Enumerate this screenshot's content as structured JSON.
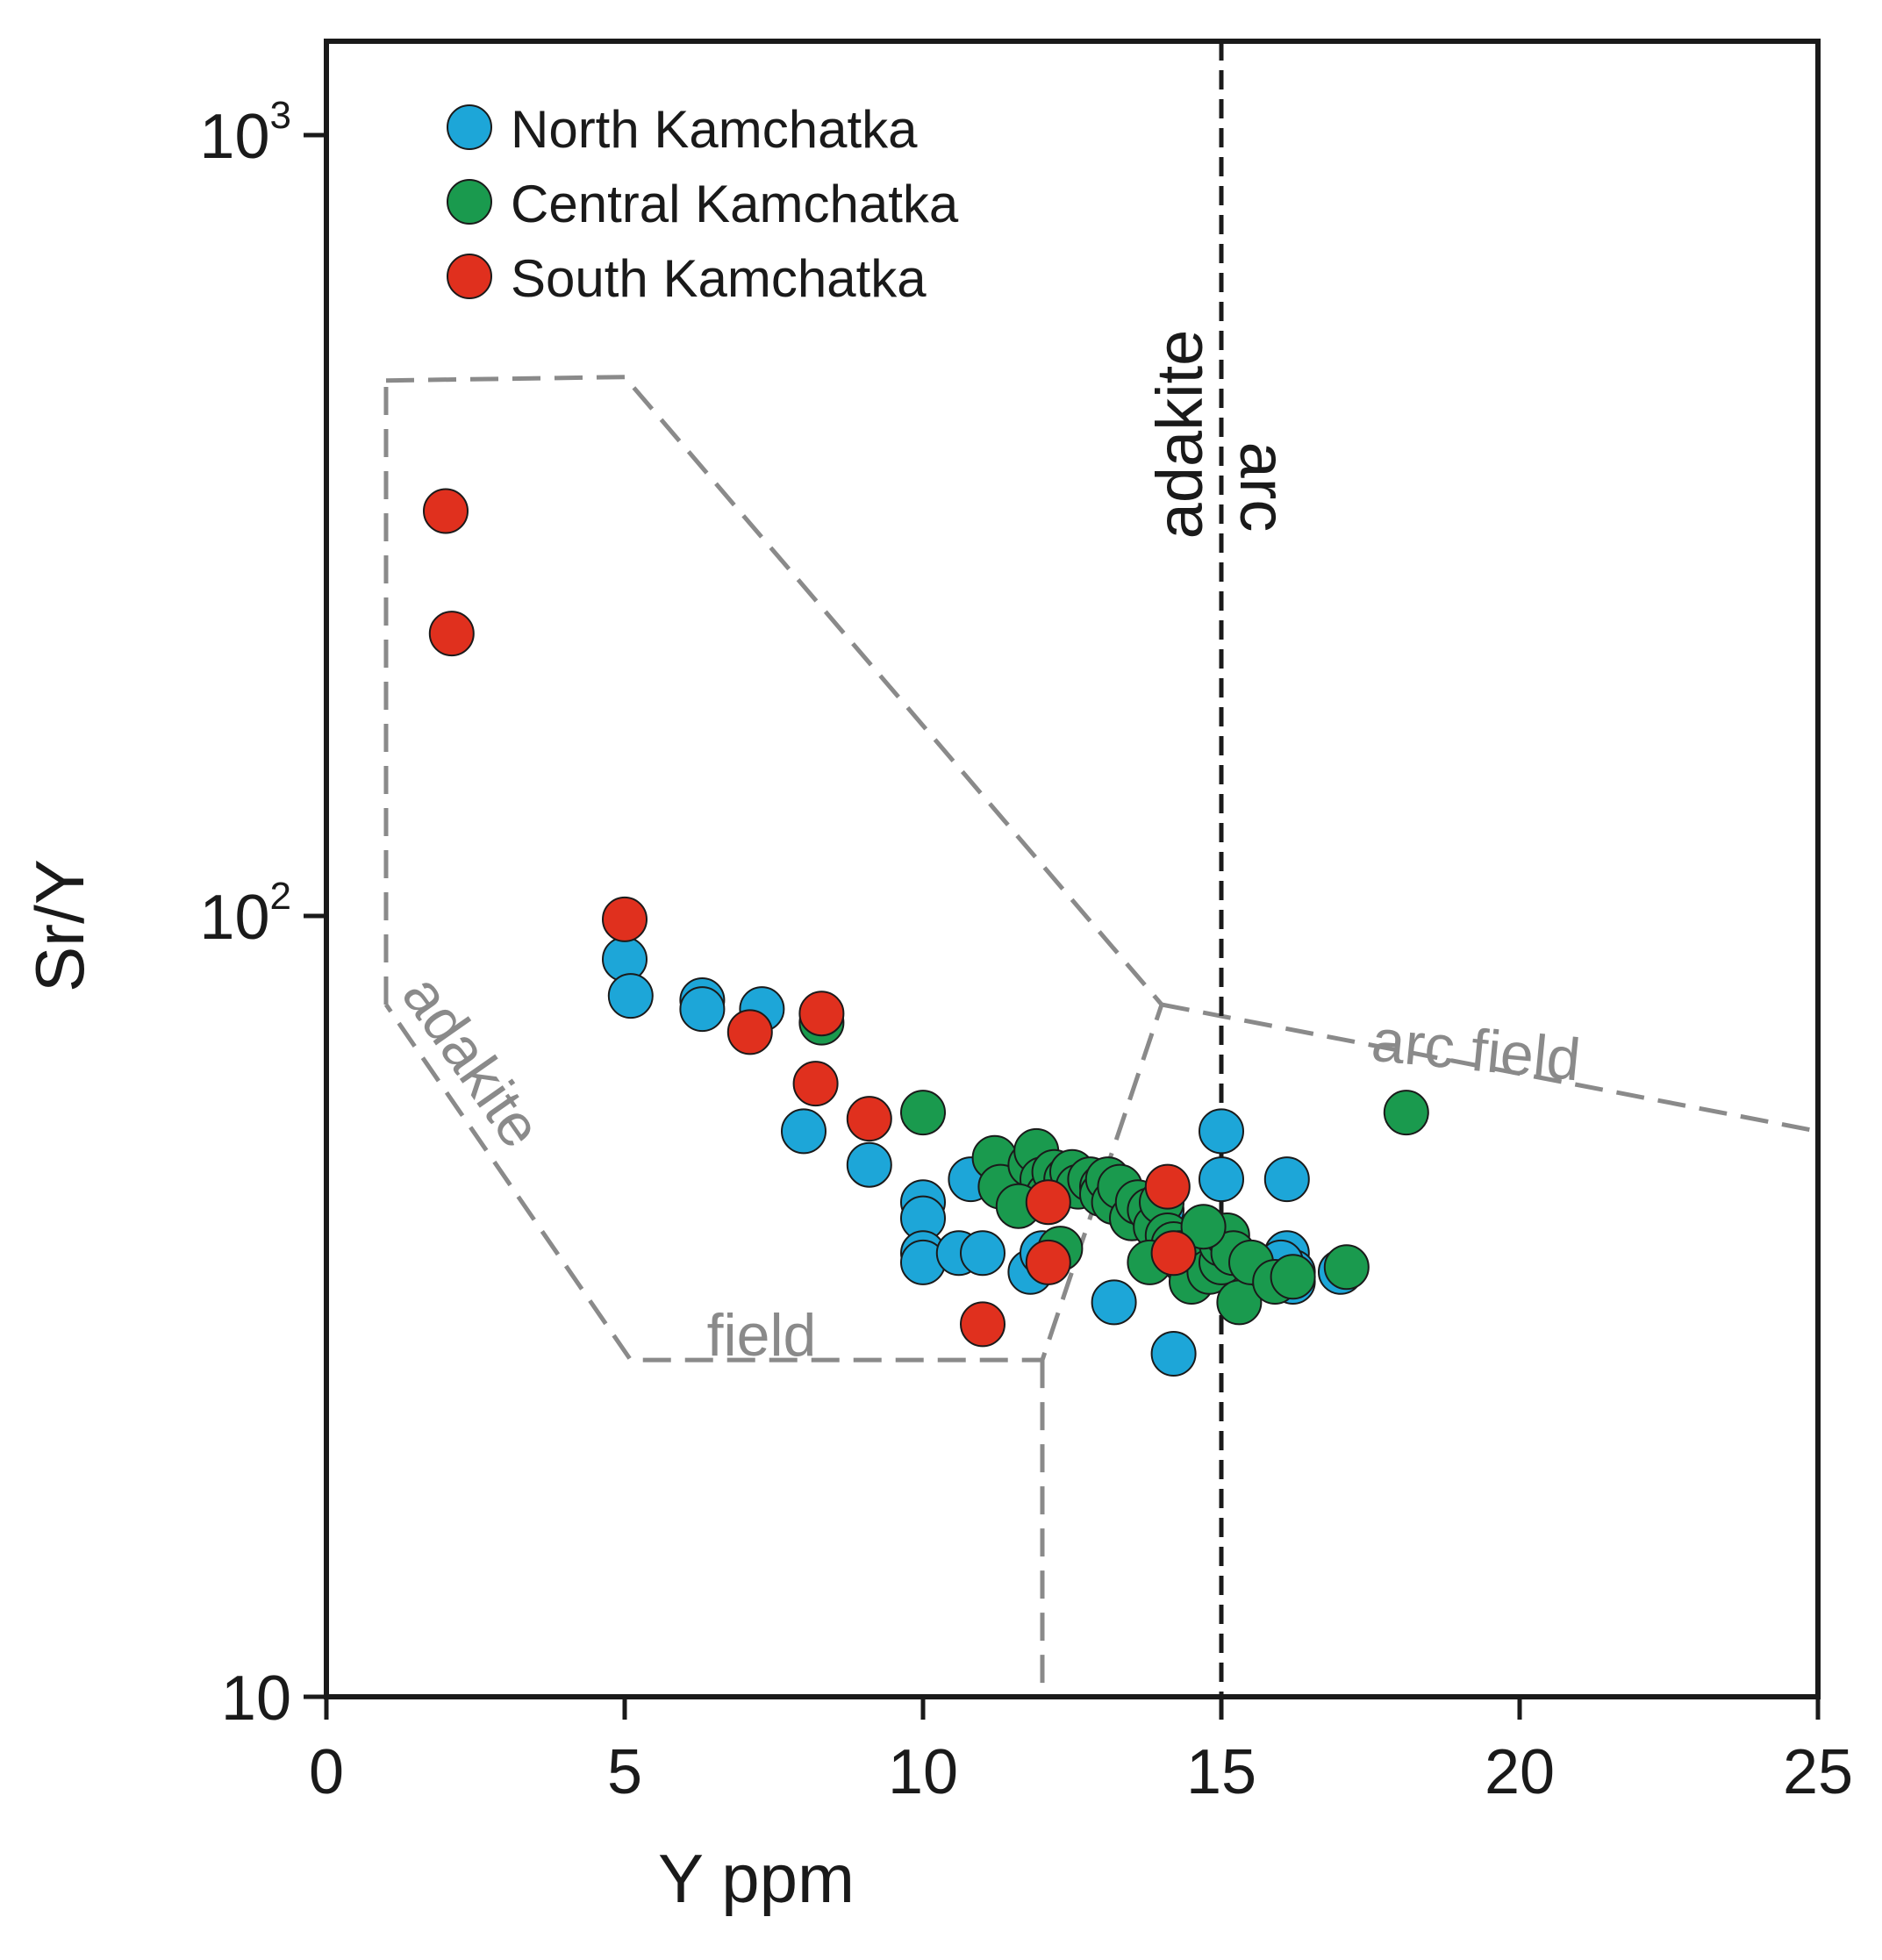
{
  "chart_data": {
    "type": "scatter",
    "xlabel": "Y ppm",
    "ylabel": "Sr/Y",
    "xlim": [
      0,
      25
    ],
    "ylim": [
      10,
      1500
    ],
    "y_scale": "log",
    "grid": false,
    "legend_position": "top-left",
    "x_ticks": [
      "0",
      "5",
      "10",
      "15",
      "20",
      "25"
    ],
    "y_ticks": [
      {
        "value": 10,
        "base": "10",
        "exp": ""
      },
      {
        "value": 100,
        "base": "10",
        "exp": "2"
      },
      {
        "value": 1000,
        "base": "10",
        "exp": "3"
      }
    ],
    "series": [
      {
        "name": "North Kamchatka",
        "color": "#1da6d8",
        "points": [
          [
            5.0,
            88
          ],
          [
            5.1,
            79
          ],
          [
            6.3,
            78
          ],
          [
            6.3,
            76
          ],
          [
            7.3,
            76
          ],
          [
            8.0,
            53
          ],
          [
            9.1,
            48
          ],
          [
            10.0,
            43
          ],
          [
            10.0,
            41
          ],
          [
            10.0,
            37
          ],
          [
            10.0,
            36
          ],
          [
            10.6,
            37
          ],
          [
            10.8,
            46
          ],
          [
            11.0,
            37
          ],
          [
            11.8,
            35
          ],
          [
            12.0,
            37
          ],
          [
            12.2,
            46
          ],
          [
            13.2,
            32
          ],
          [
            14.2,
            27.5
          ],
          [
            15.0,
            53
          ],
          [
            15.0,
            46
          ],
          [
            16.1,
            46
          ],
          [
            16.1,
            37
          ],
          [
            16.2,
            35
          ],
          [
            16.2,
            34
          ],
          [
            17.0,
            35
          ],
          [
            14.0,
            42
          ],
          [
            15.0,
            38
          ],
          [
            13.5,
            41
          ],
          [
            16.0,
            36
          ]
        ]
      },
      {
        "name": "Central Kamchatka",
        "color": "#1a9a4e",
        "points": [
          [
            8.3,
            73
          ],
          [
            10.0,
            56
          ],
          [
            11.2,
            49
          ],
          [
            11.3,
            45
          ],
          [
            11.8,
            48
          ],
          [
            11.9,
            50
          ],
          [
            12.0,
            46
          ],
          [
            12.1,
            44
          ],
          [
            12.2,
            47
          ],
          [
            12.4,
            46
          ],
          [
            12.5,
            47
          ],
          [
            12.6,
            45
          ],
          [
            12.8,
            46
          ],
          [
            13.0,
            45
          ],
          [
            13.0,
            44
          ],
          [
            13.1,
            46
          ],
          [
            13.2,
            43
          ],
          [
            13.3,
            45
          ],
          [
            13.5,
            41
          ],
          [
            13.6,
            43
          ],
          [
            13.8,
            42
          ],
          [
            13.9,
            40
          ],
          [
            14.0,
            43
          ],
          [
            14.1,
            39
          ],
          [
            14.2,
            38
          ],
          [
            14.3,
            37
          ],
          [
            14.4,
            36
          ],
          [
            14.5,
            34
          ],
          [
            14.8,
            35
          ],
          [
            15.0,
            36
          ],
          [
            15.0,
            38
          ],
          [
            15.1,
            39
          ],
          [
            15.2,
            37
          ],
          [
            15.3,
            32
          ],
          [
            15.5,
            36
          ],
          [
            15.9,
            34
          ],
          [
            16.2,
            34.5
          ],
          [
            17.1,
            35.5
          ],
          [
            18.1,
            56
          ],
          [
            12.3,
            37.5
          ],
          [
            11.6,
            42.5
          ],
          [
            13.8,
            36
          ],
          [
            14.7,
            40
          ]
        ]
      },
      {
        "name": "South Kamchatka",
        "color": "#e0301e",
        "points": [
          [
            2.0,
            330
          ],
          [
            2.1,
            230
          ],
          [
            5.0,
            99
          ],
          [
            7.1,
            71
          ],
          [
            8.2,
            61
          ],
          [
            8.3,
            75
          ],
          [
            9.1,
            55
          ],
          [
            11.0,
            30
          ],
          [
            12.1,
            43
          ],
          [
            12.1,
            36
          ],
          [
            14.1,
            45
          ],
          [
            14.2,
            37
          ]
        ]
      }
    ],
    "fields": [
      {
        "name": "adakite-field",
        "label_part1": "adakite",
        "label_part2": "field",
        "points": [
          [
            1,
            485
          ],
          [
            5,
            490
          ],
          [
            14,
            77
          ],
          [
            12,
            27
          ],
          [
            5.1,
            27
          ],
          [
            1,
            77
          ]
        ]
      },
      {
        "name": "arc-field",
        "label": "arc field",
        "points": [
          [
            14,
            77
          ],
          [
            25,
            53
          ]
        ]
      },
      {
        "name": "arc-field-base",
        "points": [
          [
            12,
            27
          ],
          [
            12,
            10
          ]
        ]
      }
    ],
    "divider": {
      "x": 15,
      "label_left": "adakite",
      "label_right": "arc"
    }
  }
}
